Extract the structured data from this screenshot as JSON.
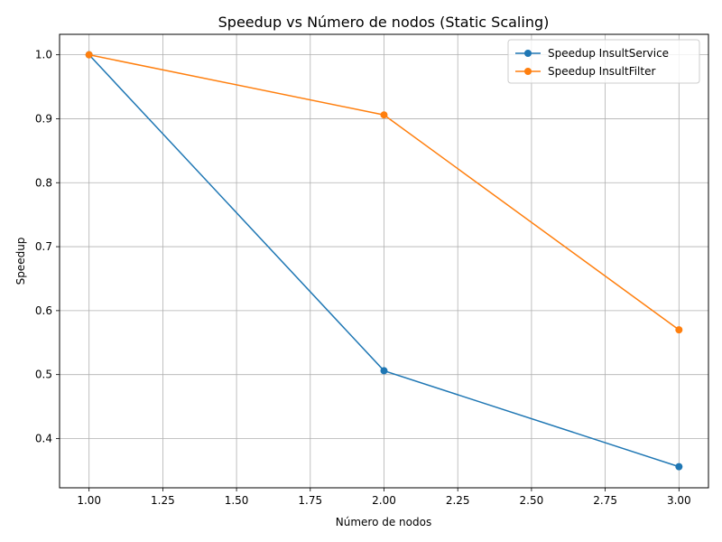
{
  "chart_data": {
    "type": "line",
    "title": "Speedup vs Número de nodos (Static Scaling)",
    "xlabel": "Número de nodos",
    "ylabel": "Speedup",
    "x": [
      1,
      2,
      3
    ],
    "xlim": [
      0.9,
      3.1
    ],
    "ylim": [
      0.323,
      1.032
    ],
    "xticks": [
      1.0,
      1.25,
      1.5,
      1.75,
      2.0,
      2.25,
      2.5,
      2.75,
      3.0
    ],
    "xtick_labels": [
      "1.00",
      "1.25",
      "1.50",
      "1.75",
      "2.00",
      "2.25",
      "2.50",
      "2.75",
      "3.00"
    ],
    "yticks": [
      0.4,
      0.5,
      0.6,
      0.7,
      0.8,
      0.9,
      1.0
    ],
    "ytick_labels": [
      "0.4",
      "0.5",
      "0.6",
      "0.7",
      "0.8",
      "0.9",
      "1.0"
    ],
    "grid": true,
    "legend_position": "top-right",
    "series": [
      {
        "name": "Speedup InsultService",
        "color": "#1f77b4",
        "values": [
          1.0,
          0.506,
          0.356
        ]
      },
      {
        "name": "Speedup InsultFilter",
        "color": "#ff7f0e",
        "values": [
          1.0,
          0.906,
          0.57
        ]
      }
    ]
  }
}
